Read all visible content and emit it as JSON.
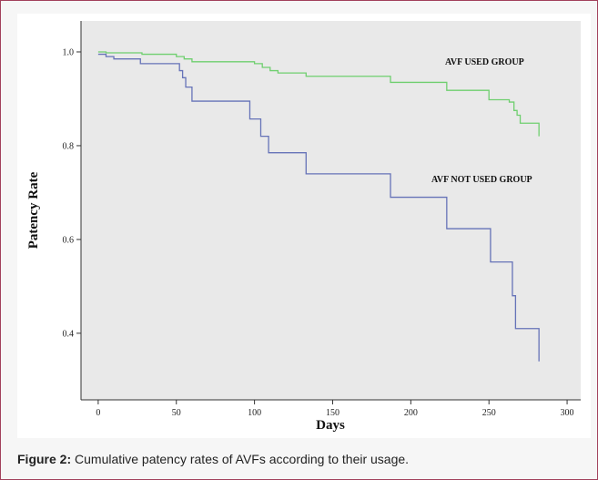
{
  "chart_data": {
    "type": "step-line",
    "x_label": "Days",
    "y_label": "Patency Rate",
    "xlim": [
      -11,
      308.7
    ],
    "ylim": [
      0.258,
      1.066
    ],
    "xticks": [
      0,
      50,
      100,
      150,
      200,
      250,
      300
    ],
    "yticks": [
      0.4,
      0.6,
      0.8,
      {
        "value": 1,
        "label": "1.0"
      }
    ],
    "series": [
      {
        "name": "AVF USED GROUP",
        "color": "#6fcf6f",
        "x": [
          0,
          5,
          28,
          50,
          55,
          60,
          100,
          105,
          110,
          115,
          133,
          187,
          223,
          250,
          263,
          266,
          268,
          270,
          282,
          282
        ],
        "values": [
          1.0,
          0.998,
          0.995,
          0.99,
          0.985,
          0.979,
          0.975,
          0.967,
          0.96,
          0.955,
          0.948,
          0.935,
          0.918,
          0.898,
          0.893,
          0.875,
          0.865,
          0.848,
          0.833,
          0.82
        ]
      },
      {
        "name": "AVF NOT USED GROUP",
        "color": "#6673b8",
        "x": [
          0,
          5,
          10,
          27,
          52,
          54,
          56,
          60,
          97,
          104,
          109,
          133,
          187,
          223,
          251,
          265,
          267,
          282
        ],
        "values": [
          0.995,
          0.99,
          0.985,
          0.975,
          0.96,
          0.945,
          0.925,
          0.895,
          0.857,
          0.82,
          0.785,
          0.74,
          0.69,
          0.623,
          0.552,
          0.48,
          0.41,
          0.34
        ]
      }
    ]
  },
  "caption": {
    "label": "Figure 2:",
    "text": "Cumulative patency rates of AVFs according to their usage."
  }
}
